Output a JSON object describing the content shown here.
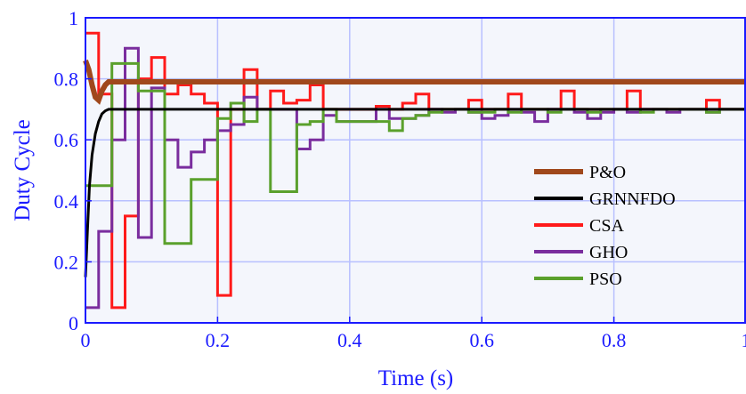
{
  "chart_data": {
    "type": "line",
    "title": "",
    "xlabel": "Time (s)",
    "ylabel": "Duty Cycle",
    "xlim": [
      0,
      1
    ],
    "ylim": [
      0,
      1
    ],
    "xticks": [
      "0",
      "0.2",
      "0.4",
      "0.6",
      "0.8",
      "1"
    ],
    "yticks": [
      "0",
      "0.2",
      "0.4",
      "0.6",
      "0.8",
      "1"
    ],
    "grid": true,
    "legend_position": "bottom-right",
    "colors": {
      "axes": "#1a1aff",
      "grid": "#b8c0ff",
      "plot_background": "#f4f6fc"
    },
    "series": [
      {
        "name": "CSA",
        "color": "#ff1a1a",
        "step": true,
        "x": [
          0,
          0.02,
          0.04,
          0.06,
          0.08,
          0.1,
          0.12,
          0.14,
          0.16,
          0.18,
          0.2,
          0.22,
          0.24,
          0.26,
          0.28,
          0.3,
          0.32,
          0.34,
          0.36,
          0.38,
          0.4,
          0.42,
          0.44,
          0.46,
          0.48,
          0.5,
          0.52,
          0.54,
          0.56,
          0.58,
          0.6,
          0.62,
          0.64,
          0.66,
          0.68,
          0.7,
          0.72,
          0.74,
          0.76,
          0.78,
          0.8,
          0.82,
          0.84,
          0.86,
          0.88,
          0.9,
          0.92,
          0.94,
          0.96,
          0.98,
          1.0
        ],
        "y": [
          0.95,
          0.75,
          0.05,
          0.35,
          0.8,
          0.87,
          0.75,
          0.78,
          0.75,
          0.72,
          0.09,
          0.7,
          0.83,
          0.7,
          0.76,
          0.72,
          0.73,
          0.78,
          0.7,
          0.7,
          0.7,
          0.7,
          0.71,
          0.7,
          0.72,
          0.75,
          0.7,
          0.7,
          0.7,
          0.73,
          0.7,
          0.7,
          0.75,
          0.7,
          0.7,
          0.7,
          0.76,
          0.7,
          0.7,
          0.7,
          0.7,
          0.76,
          0.7,
          0.7,
          0.7,
          0.7,
          0.7,
          0.73,
          0.7,
          0.7,
          0.7
        ]
      },
      {
        "name": "GHO",
        "color": "#7a2d9e",
        "step": true,
        "x": [
          0,
          0.02,
          0.04,
          0.06,
          0.08,
          0.1,
          0.12,
          0.14,
          0.16,
          0.18,
          0.2,
          0.22,
          0.24,
          0.26,
          0.28,
          0.3,
          0.32,
          0.34,
          0.36,
          0.38,
          0.4,
          0.42,
          0.44,
          0.46,
          0.48,
          0.5,
          0.52,
          0.54,
          0.56,
          0.58,
          0.6,
          0.62,
          0.64,
          0.66,
          0.68,
          0.7,
          0.72,
          0.74,
          0.76,
          0.78,
          0.8,
          0.82,
          0.84,
          0.86,
          0.88,
          0.9,
          0.92,
          0.94,
          0.96,
          0.98,
          1.0
        ],
        "y": [
          0.05,
          0.3,
          0.6,
          0.9,
          0.28,
          0.77,
          0.6,
          0.51,
          0.56,
          0.6,
          0.63,
          0.65,
          0.74,
          0.7,
          0.7,
          0.7,
          0.57,
          0.6,
          0.68,
          0.66,
          0.66,
          0.66,
          0.7,
          0.67,
          0.67,
          0.68,
          0.7,
          0.69,
          0.7,
          0.69,
          0.67,
          0.68,
          0.7,
          0.69,
          0.66,
          0.7,
          0.7,
          0.69,
          0.67,
          0.69,
          0.7,
          0.69,
          0.7,
          0.7,
          0.69,
          0.7,
          0.7,
          0.69,
          0.7,
          0.7,
          0.7
        ]
      },
      {
        "name": "PSO",
        "color": "#5aa02c",
        "step": true,
        "x": [
          0,
          0.02,
          0.04,
          0.06,
          0.08,
          0.1,
          0.12,
          0.14,
          0.16,
          0.18,
          0.2,
          0.22,
          0.24,
          0.26,
          0.28,
          0.3,
          0.32,
          0.34,
          0.36,
          0.38,
          0.4,
          0.42,
          0.44,
          0.46,
          0.48,
          0.5,
          0.52,
          0.54,
          0.56,
          0.58,
          0.6,
          0.62,
          0.64,
          0.66,
          0.68,
          0.7,
          0.72,
          0.74,
          0.76,
          0.78,
          0.8,
          0.82,
          0.84,
          0.86,
          0.88,
          0.9,
          0.92,
          0.94,
          0.96,
          0.98,
          1.0
        ],
        "y": [
          0.45,
          0.45,
          0.85,
          0.85,
          0.76,
          0.76,
          0.26,
          0.26,
          0.47,
          0.47,
          0.67,
          0.72,
          0.66,
          0.7,
          0.43,
          0.43,
          0.65,
          0.66,
          0.7,
          0.66,
          0.66,
          0.66,
          0.66,
          0.63,
          0.67,
          0.68,
          0.69,
          0.7,
          0.7,
          0.69,
          0.69,
          0.7,
          0.69,
          0.7,
          0.7,
          0.69,
          0.7,
          0.7,
          0.69,
          0.7,
          0.7,
          0.7,
          0.69,
          0.7,
          0.7,
          0.7,
          0.7,
          0.69,
          0.7,
          0.7,
          0.7
        ]
      },
      {
        "name": "GRNNFDO",
        "color": "#000000",
        "step": false,
        "x": [
          0,
          0.003,
          0.006,
          0.01,
          0.015,
          0.02,
          0.025,
          0.03,
          0.035,
          0.04,
          1.0
        ],
        "y": [
          0.15,
          0.3,
          0.45,
          0.55,
          0.62,
          0.66,
          0.685,
          0.695,
          0.7,
          0.7,
          0.7
        ]
      },
      {
        "name": "P&O",
        "color": "#a0481c",
        "step": false,
        "x": [
          0,
          0.005,
          0.01,
          0.015,
          0.02,
          0.025,
          0.03,
          0.035,
          0.04,
          1.0
        ],
        "y": [
          0.86,
          0.83,
          0.78,
          0.74,
          0.73,
          0.76,
          0.78,
          0.79,
          0.79,
          0.79
        ]
      }
    ],
    "legend": [
      {
        "name": "P&O",
        "color": "#a0481c"
      },
      {
        "name": "GRNNFDO",
        "color": "#000000"
      },
      {
        "name": "CSA",
        "color": "#ff1a1a"
      },
      {
        "name": "GHO",
        "color": "#7a2d9e"
      },
      {
        "name": "PSO",
        "color": "#5aa02c"
      }
    ]
  }
}
